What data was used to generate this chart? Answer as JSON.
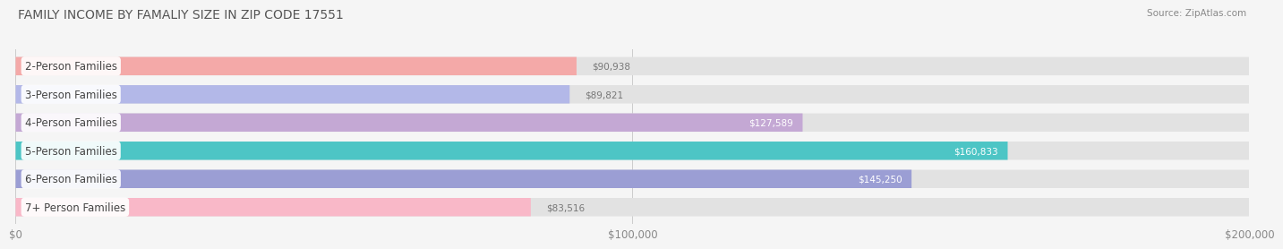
{
  "title": "FAMILY INCOME BY FAMALIY SIZE IN ZIP CODE 17551",
  "source": "Source: ZipAtlas.com",
  "categories": [
    "2-Person Families",
    "3-Person Families",
    "4-Person Families",
    "5-Person Families",
    "6-Person Families",
    "7+ Person Families"
  ],
  "values": [
    90938,
    89821,
    127589,
    160833,
    145250,
    83516
  ],
  "value_labels": [
    "$90,938",
    "$89,821",
    "$127,589",
    "$160,833",
    "$145,250",
    "$83,516"
  ],
  "bar_colors": [
    "#f4a9a8",
    "#b3b8e8",
    "#c4a8d4",
    "#4dc5c5",
    "#9b9ed4",
    "#f9b8c8"
  ],
  "label_colors": [
    "#888888",
    "#888888",
    "#ffffff",
    "#ffffff",
    "#ffffff",
    "#888888"
  ],
  "background_color": "#f5f5f5",
  "bar_background": "#e2e2e2",
  "xlim": [
    0,
    200000
  ],
  "xticks": [
    0,
    100000,
    200000
  ],
  "xtick_labels": [
    "$0",
    "$100,000",
    "$200,000"
  ],
  "title_fontsize": 10,
  "label_fontsize": 8.5,
  "value_fontsize": 7.5,
  "source_fontsize": 7.5
}
